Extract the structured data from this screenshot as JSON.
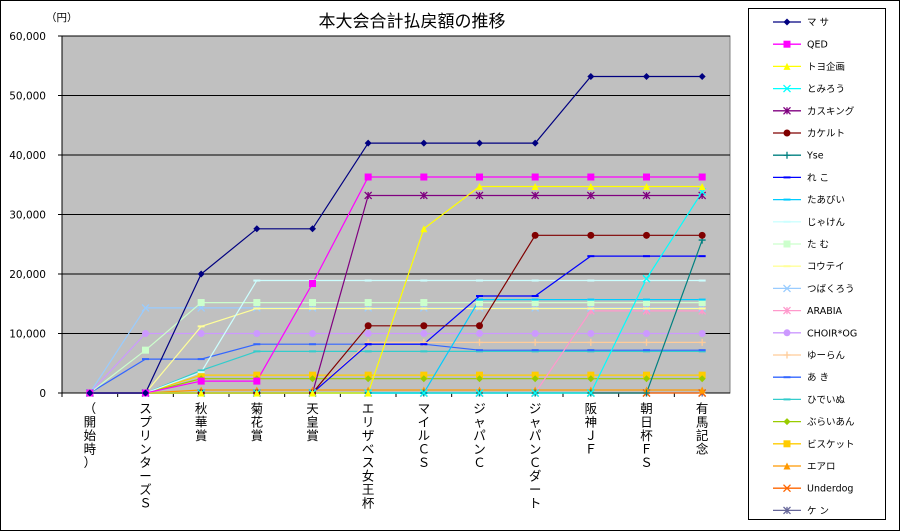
{
  "chart_data": {
    "type": "line",
    "title": "本大会合計払戻額の推移",
    "ylabel": "（円）",
    "ylim": [
      0,
      60000
    ],
    "yticks": [
      0,
      10000,
      20000,
      30000,
      40000,
      50000,
      60000
    ],
    "ytick_labels": [
      "0",
      "10,000",
      "20,000",
      "30,000",
      "40,000",
      "50,000",
      "60,000"
    ],
    "grid": true,
    "legend": "right",
    "plot_background": "#c0c0c0",
    "categories": [
      "（開始時）",
      "スプリンターズＳ",
      "秋華賞",
      "菊花賞",
      "天皇賞",
      "エリザベス女王杯",
      "マイルＣＳ",
      "ジャパンＣ",
      "ジャパンＣダート",
      "阪神ＪＦ",
      "朝日杯ＦＳ",
      "有馬記念"
    ],
    "series": [
      {
        "name": "マ サ",
        "color": "#000080",
        "marker": "diamond",
        "values": [
          0,
          0,
          20000,
          27600,
          27600,
          42000,
          42000,
          42000,
          42000,
          53200,
          53200,
          53200
        ]
      },
      {
        "name": "QED",
        "color": "#ff00ff",
        "marker": "square",
        "values": [
          0,
          0,
          2000,
          2000,
          18400,
          36300,
          36300,
          36300,
          36300,
          36300,
          36300,
          36300
        ]
      },
      {
        "name": "トヨ企画",
        "color": "#ffff00",
        "marker": "triangle",
        "values": [
          0,
          0,
          0,
          0,
          0,
          0,
          27600,
          34700,
          34700,
          34700,
          34700,
          34700
        ]
      },
      {
        "name": "とみろう",
        "color": "#00ffff",
        "marker": "x",
        "values": [
          0,
          0,
          0,
          0,
          0,
          0,
          0,
          0,
          0,
          0,
          19200,
          33800
        ]
      },
      {
        "name": "カスキング",
        "color": "#800080",
        "marker": "star",
        "values": [
          0,
          0,
          0,
          0,
          0,
          33200,
          33200,
          33200,
          33200,
          33200,
          33200,
          33200
        ]
      },
      {
        "name": "カケルト",
        "color": "#800000",
        "marker": "circle",
        "values": [
          0,
          0,
          0,
          0,
          0,
          11300,
          11300,
          11300,
          26500,
          26500,
          26500,
          26500
        ]
      },
      {
        "name": "Yse",
        "color": "#008080",
        "marker": "plus",
        "values": [
          0,
          0,
          0,
          0,
          0,
          0,
          0,
          0,
          0,
          0,
          0,
          25700
        ]
      },
      {
        "name": "れ こ",
        "color": "#0000ff",
        "marker": "dash",
        "values": [
          0,
          0,
          0,
          0,
          0,
          8200,
          8200,
          16300,
          16300,
          23000,
          23000,
          23000
        ]
      },
      {
        "name": "たあびい",
        "color": "#00ccff",
        "marker": "dash",
        "values": [
          0,
          0,
          0,
          0,
          0,
          0,
          0,
          15700,
          15700,
          15700,
          15700,
          15700
        ]
      },
      {
        "name": "じゃけん",
        "color": "#ccffff",
        "marker": "dash",
        "values": [
          0,
          0,
          3500,
          18900,
          18900,
          18900,
          18900,
          18900,
          18900,
          18900,
          18900,
          18900
        ]
      },
      {
        "name": "た む",
        "color": "#ccffcc",
        "marker": "square",
        "values": [
          0,
          7200,
          15200,
          15200,
          15200,
          15200,
          15200,
          15200,
          15200,
          15200,
          15200,
          15200
        ]
      },
      {
        "name": "コウテイ",
        "color": "#ffff99",
        "marker": "dash",
        "values": [
          0,
          0,
          11200,
          14200,
          14200,
          14200,
          14200,
          14200,
          14200,
          14200,
          14200,
          14200
        ]
      },
      {
        "name": "つばくろう",
        "color": "#99ccff",
        "marker": "x",
        "values": [
          0,
          14300,
          14300,
          14300,
          14300,
          14300,
          14300,
          14300,
          14300,
          14300,
          14300,
          14300
        ]
      },
      {
        "name": "ARABIA",
        "color": "#ff99cc",
        "marker": "star",
        "values": [
          0,
          0,
          0,
          0,
          0,
          0,
          0,
          0,
          0,
          13800,
          13800,
          13800
        ]
      },
      {
        "name": "CHOIR*OG",
        "color": "#cc99ff",
        "marker": "circle",
        "values": [
          0,
          10000,
          10000,
          10000,
          10000,
          10000,
          10000,
          10000,
          10000,
          10000,
          10000,
          10000
        ]
      },
      {
        "name": "ゆーらん",
        "color": "#ffcc99",
        "marker": "plus",
        "values": [
          0,
          0,
          0,
          0,
          0,
          8500,
          8500,
          8500,
          8500,
          8500,
          8500,
          8500
        ]
      },
      {
        "name": "あ き",
        "color": "#3366ff",
        "marker": "dash",
        "values": [
          0,
          5700,
          5700,
          8200,
          8200,
          8200,
          8200,
          7200,
          7200,
          7200,
          7200,
          7200
        ]
      },
      {
        "name": "ひでいぬ",
        "color": "#33cccc",
        "marker": "dash",
        "values": [
          0,
          0,
          3800,
          7000,
          7000,
          7000,
          7000,
          7000,
          7000,
          7000,
          7000,
          7000
        ]
      },
      {
        "name": "ぶらいあん",
        "color": "#99cc00",
        "marker": "diamond",
        "values": [
          0,
          0,
          2400,
          2400,
          2400,
          2400,
          2400,
          2400,
          2400,
          2400,
          2400,
          2400
        ]
      },
      {
        "name": "ビスケット",
        "color": "#ffcc00",
        "marker": "square",
        "values": [
          0,
          0,
          3000,
          3000,
          3000,
          3000,
          3000,
          3000,
          3000,
          3000,
          3000,
          3000
        ]
      },
      {
        "name": "エアロ",
        "color": "#ff9900",
        "marker": "triangle",
        "values": [
          0,
          0,
          500,
          500,
          500,
          500,
          500,
          500,
          500,
          500,
          500,
          500
        ]
      },
      {
        "name": "Underdog",
        "color": "#ff6600",
        "marker": "x",
        "values": [
          0,
          0,
          0,
          0,
          0,
          0,
          0,
          0,
          0,
          0,
          0,
          0
        ]
      },
      {
        "name": "ケ ン",
        "color": "#666699",
        "marker": "star",
        "values": [
          0,
          0,
          0,
          0,
          0,
          0,
          0,
          0,
          0,
          0,
          0,
          0
        ]
      }
    ]
  }
}
